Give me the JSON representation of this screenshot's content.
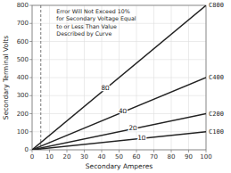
{
  "chart_data": {
    "type": "line",
    "xlabel": "Secondary Amperes",
    "ylabel": "Secondary Terminal Volts",
    "x": [
      0,
      100
    ],
    "series": [
      {
        "name": "C800",
        "values": [
          0,
          800
        ]
      },
      {
        "name": "C400",
        "values": [
          0,
          400
        ]
      },
      {
        "name": "C200",
        "values": [
          0,
          200
        ]
      },
      {
        "name": "C100",
        "values": [
          0,
          100
        ]
      }
    ],
    "color": "#222222",
    "xlim": [
      0,
      100
    ],
    "ylim": [
      0,
      800
    ],
    "xticks": [
      0,
      10,
      20,
      30,
      40,
      50,
      60,
      70,
      80,
      90,
      100
    ],
    "yticks": [
      0,
      100,
      200,
      300,
      400,
      500,
      600,
      700,
      800
    ],
    "grid": true,
    "burden_labels": [
      {
        "text": "8Ω",
        "x": 42,
        "y": 345
      },
      {
        "text": "4Ω",
        "x": 52,
        "y": 215
      },
      {
        "text": "2Ω",
        "x": 58,
        "y": 120
      },
      {
        "text": "1Ω",
        "x": 63,
        "y": 65
      }
    ],
    "reference_lines": [
      {
        "x": 5
      }
    ],
    "annotation": "Error Will Not Exceed 10%\nfor Secondary Voltage Equal\nto or Less Than Value\nDescribed by Curve"
  }
}
